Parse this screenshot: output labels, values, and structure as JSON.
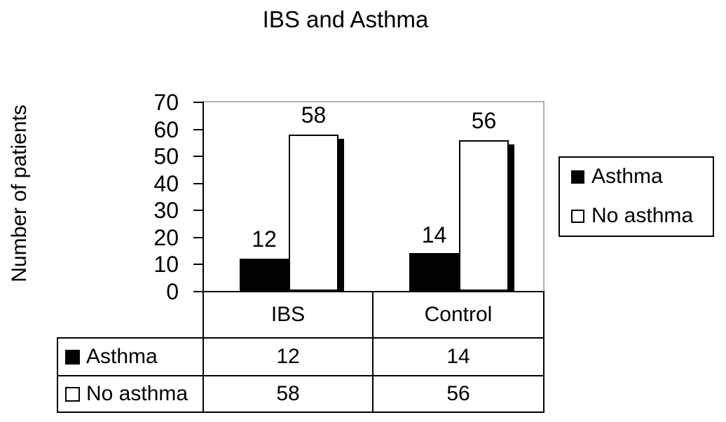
{
  "chart_data": {
    "type": "bar",
    "title": "IBS and Asthma",
    "categories": [
      "IBS",
      "Control"
    ],
    "series": [
      {
        "name": "Asthma",
        "values": [
          12,
          14
        ],
        "fill": "#000000"
      },
      {
        "name": "No asthma",
        "values": [
          58,
          56
        ],
        "fill": "#ffffff"
      }
    ],
    "xlabel": "",
    "ylabel": "Number of patients",
    "ylim": [
      0,
      70
    ],
    "yticks": [
      "0",
      "10",
      "20",
      "30",
      "40",
      "50",
      "60",
      "70"
    ],
    "grid": false,
    "data_labels_shown": true,
    "legend_position": "right",
    "colors": {
      "series_asthma": "#000000",
      "series_no_asthma": "#ffffff",
      "bar_border": "#000000",
      "bar_shadow": "#000000",
      "plot_border_top_right": "#b3b3b3",
      "axis": "#000000",
      "text": "#000000",
      "background": "#ffffff"
    }
  },
  "legend": {
    "items": [
      {
        "label": "Asthma",
        "swatch": "black-filled-square"
      },
      {
        "label": "No asthma",
        "swatch": "white-outlined-square"
      }
    ]
  },
  "data_table": {
    "column_headers": [
      "IBS",
      "Control"
    ],
    "rows": [
      {
        "label": "Asthma",
        "swatch": "black-filled-square",
        "values": [
          "12",
          "14"
        ]
      },
      {
        "label": "No asthma",
        "swatch": "white-outlined-square",
        "values": [
          "58",
          "56"
        ]
      }
    ]
  }
}
